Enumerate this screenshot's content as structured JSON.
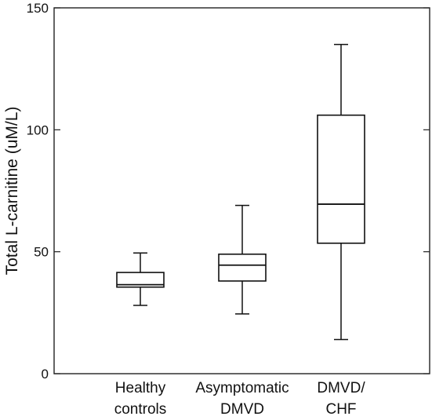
{
  "chart_data": {
    "type": "box",
    "ylabel": "Total L-carnitine (uM/L)",
    "xlabel": "",
    "ylim": [
      0,
      150
    ],
    "yticks": [
      0,
      50,
      100,
      150
    ],
    "grid": false,
    "categories": [
      [
        "Healthy",
        "controls"
      ],
      [
        "Asymptomatic",
        "DMVD"
      ],
      [
        "DMVD/",
        "CHF"
      ]
    ],
    "boxes": [
      {
        "min": 28,
        "q1": 35.5,
        "median": 36.5,
        "q3": 41.5,
        "max": 49.5
      },
      {
        "min": 24.5,
        "q1": 38,
        "median": 44.5,
        "q3": 49,
        "max": 69
      },
      {
        "min": 14,
        "q1": 53.5,
        "median": 69.5,
        "q3": 106,
        "max": 135
      }
    ]
  }
}
